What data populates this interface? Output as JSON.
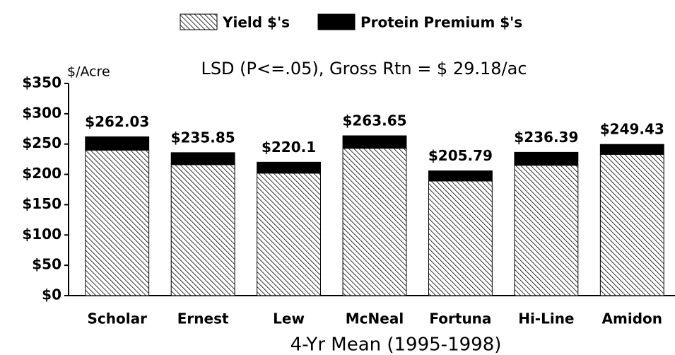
{
  "chart_data": {
    "type": "stacked_bar",
    "title": "LSD (P<=.05), Gross Rtn = $ 29.18/ac",
    "y_axis_label": "$/Acre",
    "x_axis_label": "4-Yr Mean (1995-1998)",
    "categories": [
      "Scholar",
      "Ernest",
      "Lew",
      "McNeal",
      "Fortuna",
      "Hi-Line",
      "Amidon"
    ],
    "series": [
      {
        "name": "Yield $'s",
        "color": "#000000",
        "pattern": "hatch",
        "values": [
          240,
          216,
          202,
          243,
          189,
          215,
          233
        ]
      },
      {
        "name": "Protein Premium $'s",
        "color": "#000000",
        "pattern": "solid",
        "values": [
          22.03,
          19.85,
          18.1,
          20.65,
          16.79,
          21.39,
          16.43
        ]
      }
    ],
    "totals": [
      262.03,
      235.85,
      220.1,
      263.65,
      205.79,
      236.39,
      249.43
    ],
    "total_labels": [
      "$262.03",
      "$235.85",
      "$220.1",
      "$263.65",
      "$205.79",
      "$236.39",
      "$249.43"
    ],
    "ylim": [
      0,
      350
    ],
    "yticks": [
      {
        "value": 0,
        "label": "$0"
      },
      {
        "value": 50,
        "label": "$50"
      },
      {
        "value": 100,
        "label": "$100"
      },
      {
        "value": 150,
        "label": "$150"
      },
      {
        "value": 200,
        "label": "$200"
      },
      {
        "value": 250,
        "label": "$250"
      },
      {
        "value": 300,
        "label": "$300"
      },
      {
        "value": 350,
        "label": "$350"
      }
    ],
    "legend": "top"
  }
}
